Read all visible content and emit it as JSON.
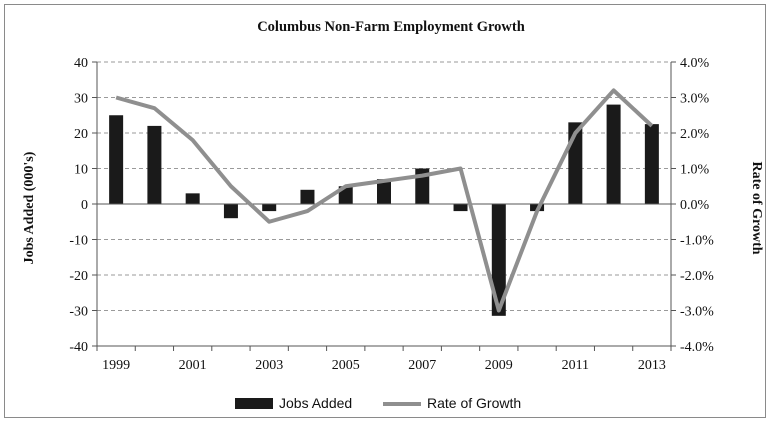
{
  "chart_data": {
    "type": "bar+line",
    "title": "Columbus Non-Farm Employment Growth",
    "ylabel_left": "Jobs Added (000's)",
    "ylabel_right": "Rate of Growth",
    "x": [
      1999,
      2000,
      2001,
      2002,
      2003,
      2004,
      2005,
      2006,
      2007,
      2008,
      2009,
      2010,
      2011,
      2012,
      2013
    ],
    "x_tick_labels": [
      "1999",
      "2001",
      "2003",
      "2005",
      "2007",
      "2009",
      "2011",
      "2013"
    ],
    "ylim_left": [
      -40,
      40
    ],
    "ylim_right": [
      -0.04,
      0.04
    ],
    "y_left_ticks": [
      "40",
      "30",
      "20",
      "10",
      "0",
      "-10",
      "-20",
      "-30",
      "-40"
    ],
    "y_right_ticks": [
      "4.0%",
      "3.0%",
      "2.0%",
      "1.0%",
      "0.0%",
      "-1.0%",
      "-2.0%",
      "-3.0%",
      "-4.0%"
    ],
    "grid": "horizontal-dashed",
    "legend_position": "bottom",
    "series": [
      {
        "name": "Jobs Added",
        "type": "bar",
        "axis": "left",
        "color": "#1a1a1a",
        "values": [
          25,
          22,
          3,
          -4,
          -2,
          4,
          5,
          7,
          10,
          -2,
          -31.5,
          -2,
          23,
          28,
          22.5
        ]
      },
      {
        "name": "Rate of Growth",
        "type": "line",
        "axis": "right",
        "color": "#8f8f8f",
        "values": [
          0.03,
          0.027,
          0.018,
          0.005,
          -0.005,
          -0.002,
          0.005,
          0.0065,
          0.008,
          0.01,
          -0.03,
          -0.002,
          0.02,
          0.032,
          0.022
        ]
      }
    ]
  }
}
